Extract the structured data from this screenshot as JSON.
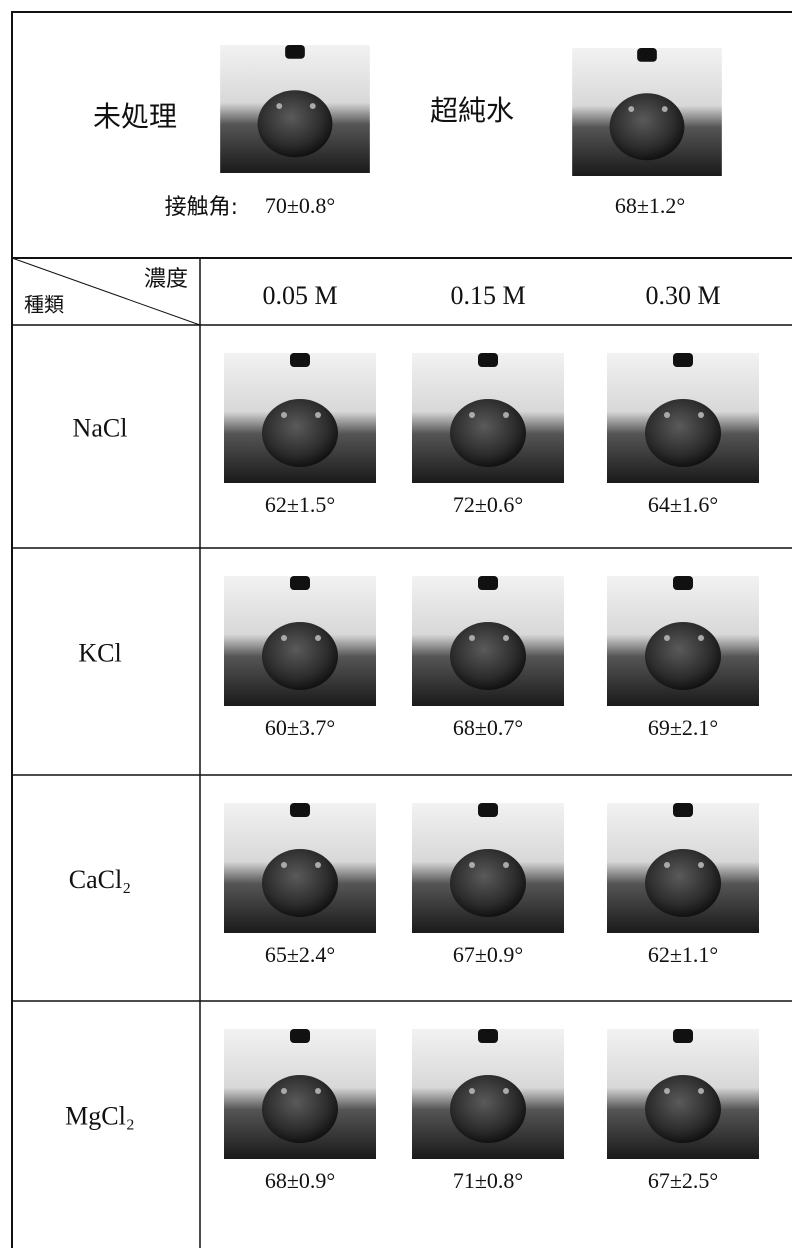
{
  "top": {
    "samples": [
      {
        "label": "未処理",
        "angle": "70±0.8°"
      },
      {
        "label": "超純水",
        "angle": "68±1.2°"
      }
    ],
    "angle_label": "接触角:"
  },
  "table": {
    "corner": {
      "column_header": "濃度",
      "row_header": "種類"
    },
    "columns": [
      "0.05 M",
      "0.15 M",
      "0.30 M"
    ],
    "rows": [
      {
        "name": "NaCl",
        "angles": [
          "62±1.5°",
          "72±0.6°",
          "64±1.6°"
        ]
      },
      {
        "name": "KCl",
        "angles": [
          "60±3.7°",
          "68±0.7°",
          "69±2.1°"
        ]
      },
      {
        "name": "CaCl₂",
        "angles": [
          "65±2.4°",
          "67±0.9°",
          "62±1.1°"
        ]
      },
      {
        "name": "MgCl₂",
        "angles": [
          "68±0.9°",
          "71±0.8°",
          "67±2.5°"
        ]
      }
    ]
  }
}
